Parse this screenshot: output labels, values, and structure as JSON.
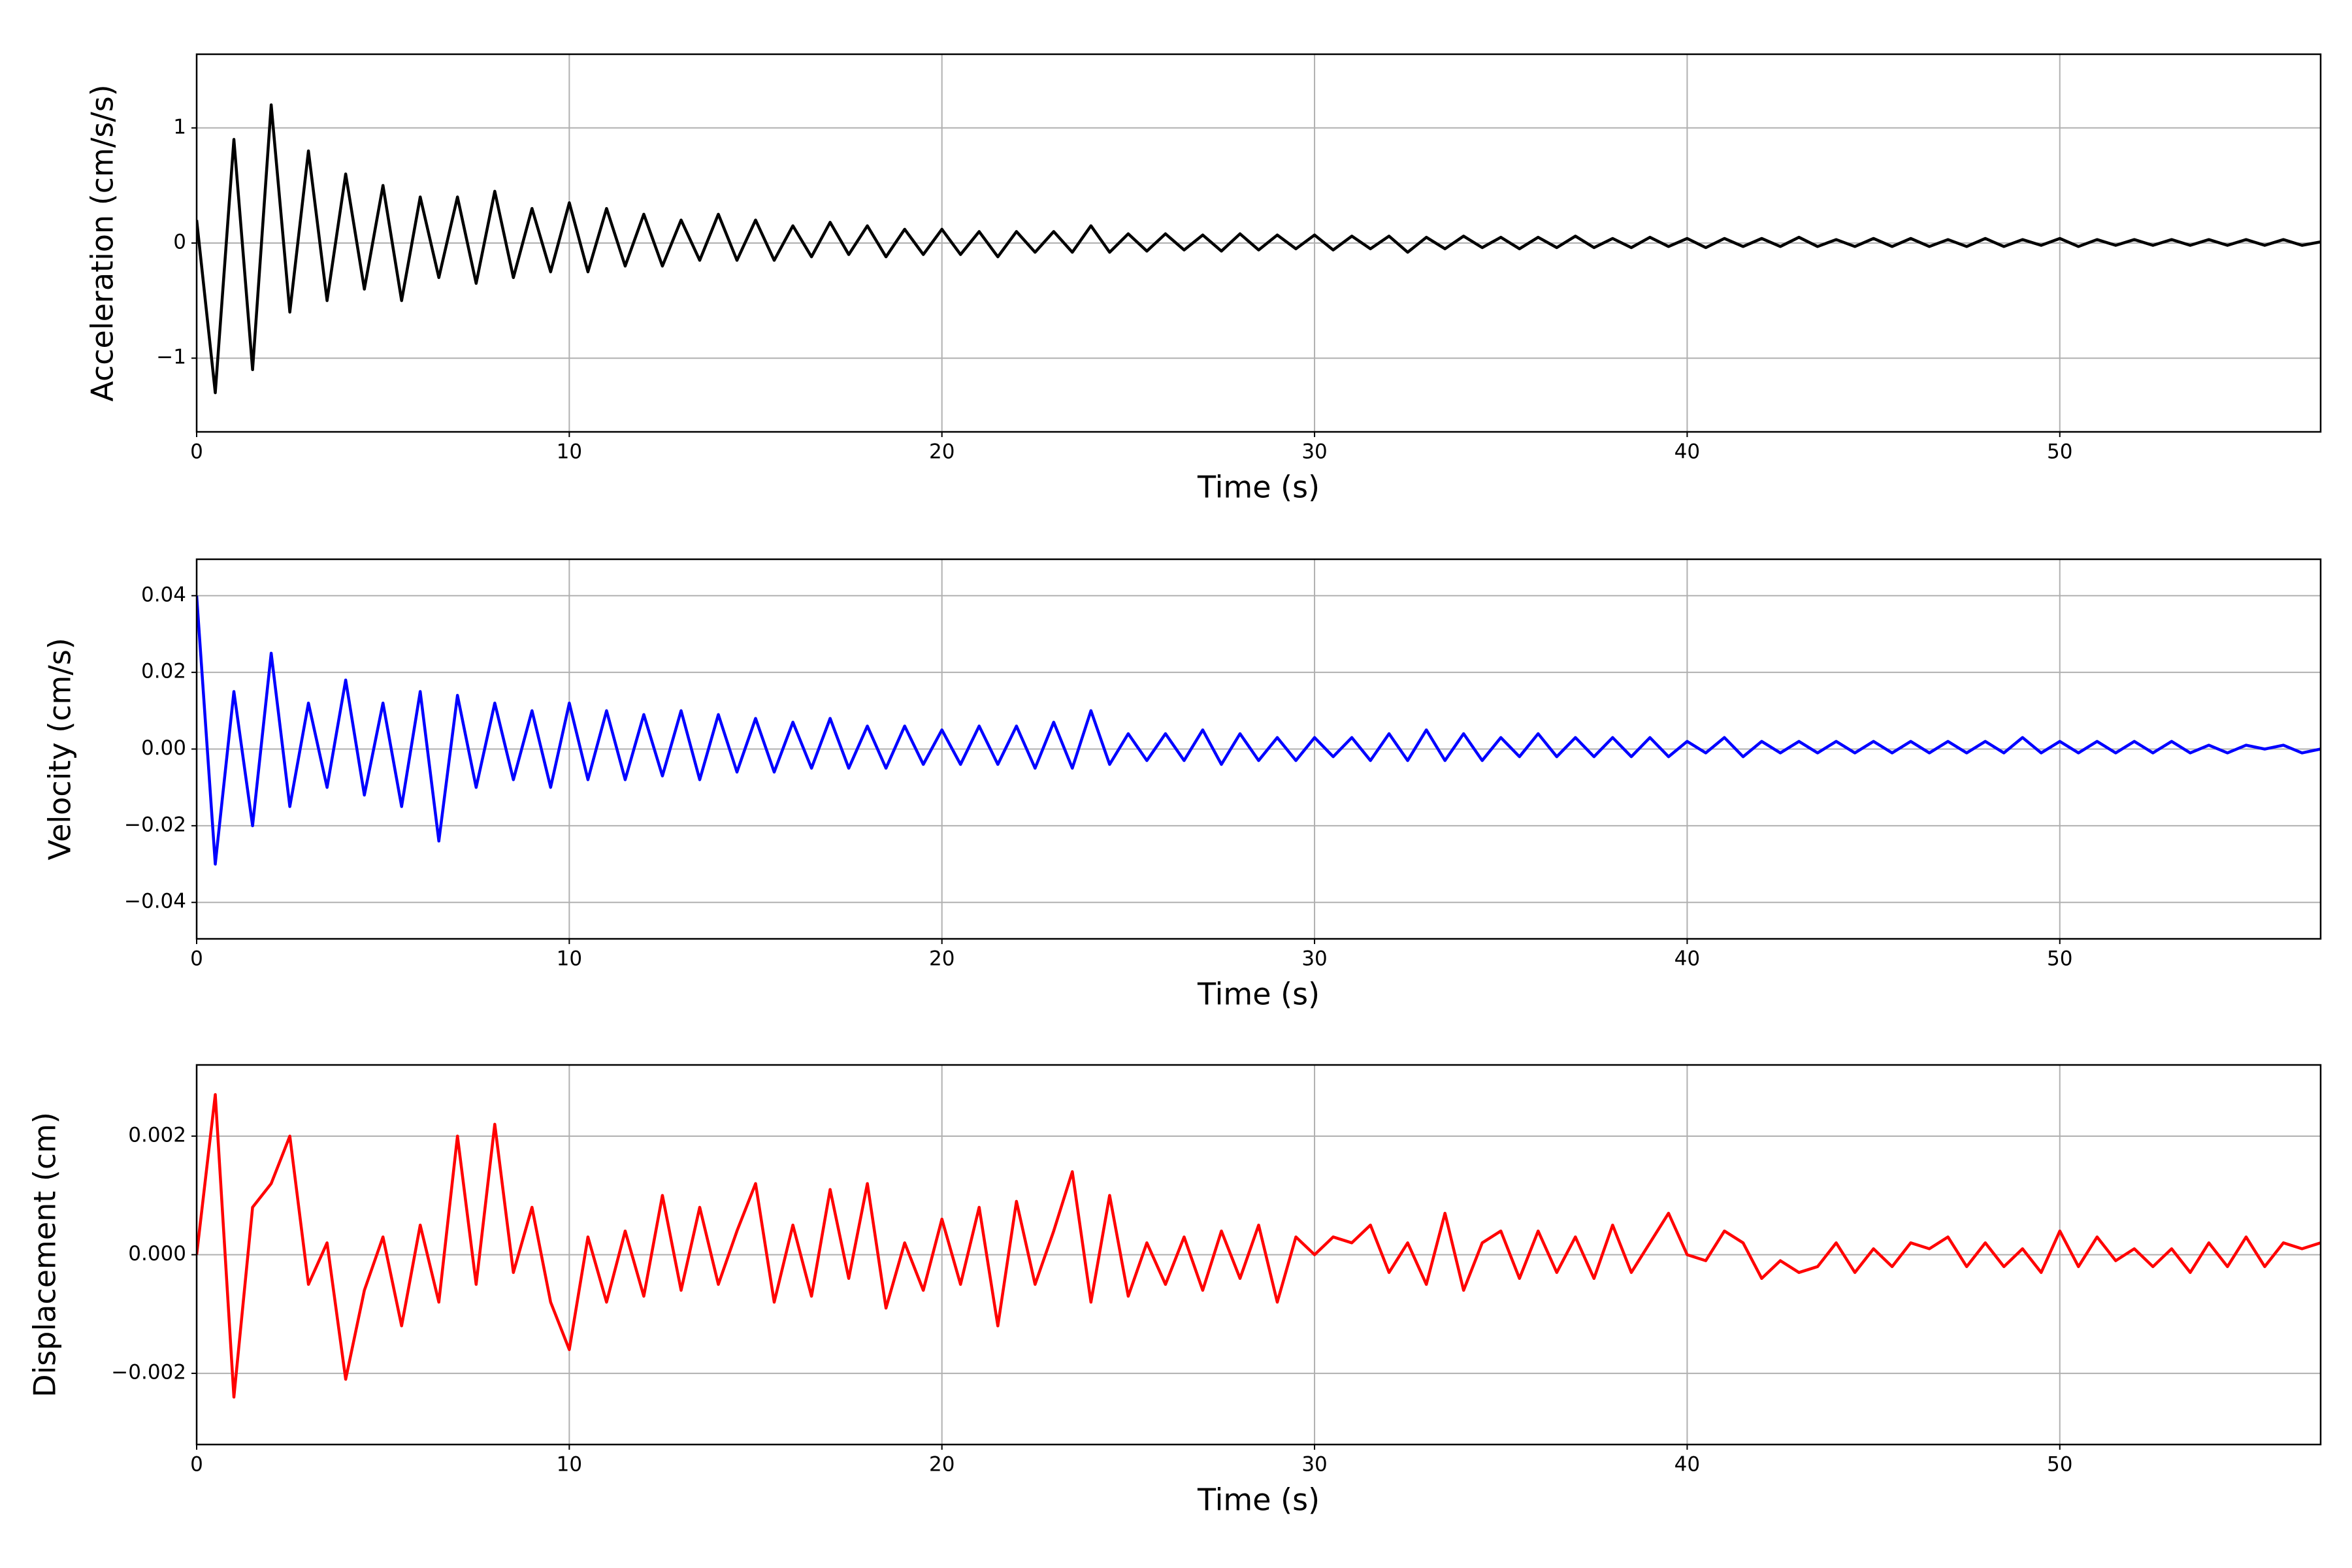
{
  "chart_data": [
    {
      "type": "line",
      "xlabel": "Time (s)",
      "ylabel": "Acceleration (cm/s/s)",
      "color": "#000000",
      "grid": true,
      "xlim": [
        0,
        57
      ],
      "xticks": [
        0,
        10,
        20,
        30,
        40,
        50
      ],
      "ylim": [
        -1.64,
        1.64
      ],
      "yticks": [
        {
          "value": -1,
          "label": "−1"
        },
        0,
        1
      ],
      "x": [
        0,
        0.5,
        1,
        1.5,
        2,
        2.5,
        3,
        3.5,
        4,
        4.5,
        5,
        5.5,
        6,
        6.5,
        7,
        7.5,
        8,
        8.5,
        9,
        9.5,
        10,
        10.5,
        11,
        11.5,
        12,
        12.5,
        13,
        13.5,
        14,
        14.5,
        15,
        15.5,
        16,
        16.5,
        17,
        17.5,
        18,
        18.5,
        19,
        19.5,
        20,
        20.5,
        21,
        21.5,
        22,
        22.5,
        23,
        23.5,
        24,
        24.5,
        25,
        25.5,
        26,
        26.5,
        27,
        27.5,
        28,
        28.5,
        29,
        29.5,
        30,
        30.5,
        31,
        31.5,
        32,
        32.5,
        33,
        33.5,
        34,
        34.5,
        35,
        35.5,
        36,
        36.5,
        37,
        37.5,
        38,
        38.5,
        39,
        39.5,
        40,
        40.5,
        41,
        41.5,
        42,
        42.5,
        43,
        43.5,
        44,
        44.5,
        45,
        45.5,
        46,
        46.5,
        47,
        47.5,
        48,
        48.5,
        49,
        49.5,
        50,
        50.5,
        51,
        51.5,
        52,
        52.5,
        53,
        53.5,
        54,
        54.5,
        55,
        55.5,
        56,
        56.5,
        57
      ],
      "values": [
        0.2,
        -1.3,
        0.9,
        -1.1,
        1.2,
        -0.6,
        0.8,
        -0.5,
        0.6,
        -0.4,
        0.5,
        -0.5,
        0.4,
        -0.3,
        0.4,
        -0.35,
        0.45,
        -0.3,
        0.3,
        -0.25,
        0.35,
        -0.25,
        0.3,
        -0.2,
        0.25,
        -0.2,
        0.2,
        -0.15,
        0.25,
        -0.15,
        0.2,
        -0.15,
        0.15,
        -0.12,
        0.18,
        -0.1,
        0.15,
        -0.12,
        0.12,
        -0.1,
        0.12,
        -0.1,
        0.1,
        -0.12,
        0.1,
        -0.08,
        0.1,
        -0.08,
        0.15,
        -0.08,
        0.08,
        -0.07,
        0.08,
        -0.06,
        0.07,
        -0.07,
        0.08,
        -0.06,
        0.07,
        -0.05,
        0.07,
        -0.06,
        0.06,
        -0.05,
        0.06,
        -0.08,
        0.05,
        -0.05,
        0.06,
        -0.04,
        0.05,
        -0.05,
        0.05,
        -0.04,
        0.06,
        -0.04,
        0.04,
        -0.04,
        0.05,
        -0.03,
        0.04,
        -0.04,
        0.04,
        -0.03,
        0.04,
        -0.03,
        0.05,
        -0.03,
        0.03,
        -0.03,
        0.04,
        -0.03,
        0.04,
        -0.03,
        0.03,
        -0.03,
        0.04,
        -0.03,
        0.03,
        -0.02,
        0.04,
        -0.03,
        0.03,
        -0.02,
        0.03,
        -0.02,
        0.03,
        -0.02,
        0.03,
        -0.02,
        0.03,
        -0.02,
        0.03,
        -0.02,
        0.01
      ]
    },
    {
      "type": "line",
      "xlabel": "Time (s)",
      "ylabel": "Velocity (cm/s)",
      "color": "#0000ff",
      "grid": true,
      "xlim": [
        0,
        57
      ],
      "xticks": [
        0,
        10,
        20,
        30,
        40,
        50
      ],
      "ylim": [
        -0.0495,
        0.0495
      ],
      "yticks": [
        {
          "value": -0.04,
          "label": "−0.04"
        },
        {
          "value": -0.02,
          "label": "−0.02"
        },
        {
          "value": 0,
          "label": "0.00"
        },
        0.02,
        0.04
      ],
      "x": [
        0,
        0.5,
        1,
        1.5,
        2,
        2.5,
        3,
        3.5,
        4,
        4.5,
        5,
        5.5,
        6,
        6.5,
        7,
        7.5,
        8,
        8.5,
        9,
        9.5,
        10,
        10.5,
        11,
        11.5,
        12,
        12.5,
        13,
        13.5,
        14,
        14.5,
        15,
        15.5,
        16,
        16.5,
        17,
        17.5,
        18,
        18.5,
        19,
        19.5,
        20,
        20.5,
        21,
        21.5,
        22,
        22.5,
        23,
        23.5,
        24,
        24.5,
        25,
        25.5,
        26,
        26.5,
        27,
        27.5,
        28,
        28.5,
        29,
        29.5,
        30,
        30.5,
        31,
        31.5,
        32,
        32.5,
        33,
        33.5,
        34,
        34.5,
        35,
        35.5,
        36,
        36.5,
        37,
        37.5,
        38,
        38.5,
        39,
        39.5,
        40,
        40.5,
        41,
        41.5,
        42,
        42.5,
        43,
        43.5,
        44,
        44.5,
        45,
        45.5,
        46,
        46.5,
        47,
        47.5,
        48,
        48.5,
        49,
        49.5,
        50,
        50.5,
        51,
        51.5,
        52,
        52.5,
        53,
        53.5,
        54,
        54.5,
        55,
        55.5,
        56,
        56.5,
        57
      ],
      "values": [
        0.04,
        -0.03,
        0.015,
        -0.02,
        0.025,
        -0.015,
        0.012,
        -0.01,
        0.018,
        -0.012,
        0.012,
        -0.015,
        0.015,
        -0.024,
        0.014,
        -0.01,
        0.012,
        -0.008,
        0.01,
        -0.01,
        0.012,
        -0.008,
        0.01,
        -0.008,
        0.009,
        -0.007,
        0.01,
        -0.008,
        0.009,
        -0.006,
        0.008,
        -0.006,
        0.007,
        -0.005,
        0.008,
        -0.005,
        0.006,
        -0.005,
        0.006,
        -0.004,
        0.005,
        -0.004,
        0.006,
        -0.004,
        0.006,
        -0.005,
        0.007,
        -0.005,
        0.01,
        -0.004,
        0.004,
        -0.003,
        0.004,
        -0.003,
        0.005,
        -0.004,
        0.004,
        -0.003,
        0.003,
        -0.003,
        0.003,
        -0.002,
        0.003,
        -0.003,
        0.004,
        -0.003,
        0.005,
        -0.003,
        0.004,
        -0.003,
        0.003,
        -0.002,
        0.004,
        -0.002,
        0.003,
        -0.002,
        0.003,
        -0.002,
        0.003,
        -0.002,
        0.002,
        -0.001,
        0.003,
        -0.002,
        0.002,
        -0.001,
        0.002,
        -0.001,
        0.002,
        -0.001,
        0.002,
        -0.001,
        0.002,
        -0.001,
        0.002,
        -0.001,
        0.002,
        -0.001,
        0.003,
        -0.001,
        0.002,
        -0.001,
        0.002,
        -0.001,
        0.002,
        -0.001,
        0.002,
        -0.001,
        0.001,
        -0.001,
        0.001,
        0,
        0.001,
        -0.001,
        0
      ]
    },
    {
      "type": "line",
      "xlabel": "Time (s)",
      "ylabel": "Displacement (cm)",
      "color": "#ff0000",
      "grid": true,
      "xlim": [
        0,
        57
      ],
      "xticks": [
        0,
        10,
        20,
        30,
        40,
        50
      ],
      "ylim": [
        -0.0032,
        0.0032
      ],
      "yticks": [
        {
          "value": -0.002,
          "label": "−0.002"
        },
        {
          "value": 0,
          "label": "0.000"
        },
        0.002
      ],
      "x": [
        0,
        0.5,
        1,
        1.5,
        2,
        2.5,
        3,
        3.5,
        4,
        4.5,
        5,
        5.5,
        6,
        6.5,
        7,
        7.5,
        8,
        8.5,
        9,
        9.5,
        10,
        10.5,
        11,
        11.5,
        12,
        12.5,
        13,
        13.5,
        14,
        14.5,
        15,
        15.5,
        16,
        16.5,
        17,
        17.5,
        18,
        18.5,
        19,
        19.5,
        20,
        20.5,
        21,
        21.5,
        22,
        22.5,
        23,
        23.5,
        24,
        24.5,
        25,
        25.5,
        26,
        26.5,
        27,
        27.5,
        28,
        28.5,
        29,
        29.5,
        30,
        30.5,
        31,
        31.5,
        32,
        32.5,
        33,
        33.5,
        34,
        34.5,
        35,
        35.5,
        36,
        36.5,
        37,
        37.5,
        38,
        38.5,
        39,
        39.5,
        40,
        40.5,
        41,
        41.5,
        42,
        42.5,
        43,
        43.5,
        44,
        44.5,
        45,
        45.5,
        46,
        46.5,
        47,
        47.5,
        48,
        48.5,
        49,
        49.5,
        50,
        50.5,
        51,
        51.5,
        52,
        52.5,
        53,
        53.5,
        54,
        54.5,
        55,
        55.5,
        56,
        56.5,
        57
      ],
      "values": [
        0,
        0.0027,
        -0.0024,
        0.0008,
        0.0012,
        0.002,
        -0.0005,
        0.0002,
        -0.0021,
        -0.0006,
        0.0003,
        -0.0012,
        0.0005,
        -0.0008,
        0.002,
        -0.0005,
        0.0022,
        -0.0003,
        0.0008,
        -0.0008,
        -0.0016,
        0.0003,
        -0.0008,
        0.0004,
        -0.0007,
        0.001,
        -0.0006,
        0.0008,
        -0.0005,
        0.0004,
        0.0012,
        -0.0008,
        0.0005,
        -0.0007,
        0.0011,
        -0.0004,
        0.0012,
        -0.0009,
        0.0002,
        -0.0006,
        0.0006,
        -0.0005,
        0.0008,
        -0.0012,
        0.0009,
        -0.0005,
        0.0004,
        0.0014,
        -0.0008,
        0.001,
        -0.0007,
        0.0002,
        -0.0005,
        0.0003,
        -0.0006,
        0.0004,
        -0.0004,
        0.0005,
        -0.0008,
        0.0003,
        0,
        0.0003,
        0.0002,
        0.0005,
        -0.0003,
        0.0002,
        -0.0005,
        0.0007,
        -0.0006,
        0.0002,
        0.0004,
        -0.0004,
        0.0004,
        -0.0003,
        0.0003,
        -0.0004,
        0.0005,
        -0.0003,
        0.0002,
        0.0007,
        0,
        -0.0001,
        0.0004,
        0.0002,
        -0.0004,
        -0.0001,
        -0.0003,
        -0.0002,
        0.0002,
        -0.0003,
        0.0001,
        -0.0002,
        0.0002,
        0.0001,
        0.0003,
        -0.0002,
        0.0002,
        -0.0002,
        0.0001,
        -0.0003,
        0.0004,
        -0.0002,
        0.0003,
        -0.0001,
        0.0001,
        -0.0002,
        0.0001,
        -0.0003,
        0.0002,
        -0.0002,
        0.0003,
        -0.0002,
        0.0002,
        0.0001,
        0.0002
      ]
    }
  ]
}
